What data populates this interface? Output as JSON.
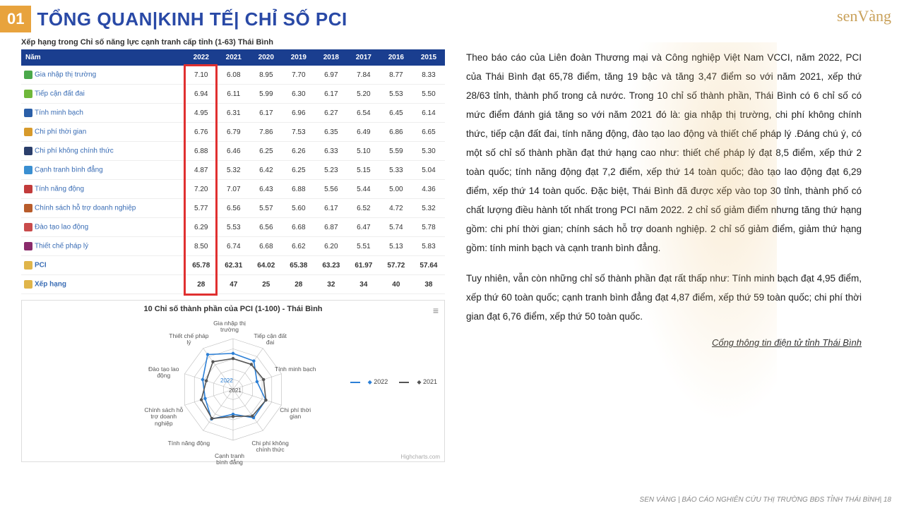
{
  "header": {
    "number": "01",
    "title": "TỔNG QUAN|KINH TẾ| CHỈ SỐ PCI",
    "logo": "senVàng"
  },
  "table": {
    "title": "Xếp hạng trong Chỉ số năng lực cạnh tranh cấp tỉnh (1-63) Thái Bình",
    "header_first": "Năm",
    "years": [
      "2022",
      "2021",
      "2020",
      "2019",
      "2018",
      "2017",
      "2016",
      "2015"
    ],
    "rows": [
      {
        "icon": "#4aa84a",
        "label": "Gia nhập thị trường",
        "vals": [
          "7.10",
          "6.08",
          "8.95",
          "7.70",
          "6.97",
          "7.84",
          "8.77",
          "8.33"
        ]
      },
      {
        "icon": "#6fb83a",
        "label": "Tiếp cận đất đai",
        "vals": [
          "6.94",
          "6.11",
          "5.99",
          "6.30",
          "6.17",
          "5.20",
          "5.53",
          "5.50"
        ]
      },
      {
        "icon": "#2b5fa8",
        "label": "Tính minh bạch",
        "vals": [
          "4.95",
          "6.31",
          "6.17",
          "6.96",
          "6.27",
          "6.54",
          "6.45",
          "6.14"
        ]
      },
      {
        "icon": "#d79a2b",
        "label": "Chi phí thời gian",
        "vals": [
          "6.76",
          "6.79",
          "7.86",
          "7.53",
          "6.35",
          "6.49",
          "6.86",
          "6.65"
        ]
      },
      {
        "icon": "#2b3f6b",
        "label": "Chi phí không chính thức",
        "vals": [
          "6.88",
          "6.46",
          "6.25",
          "6.26",
          "6.33",
          "5.10",
          "5.59",
          "5.30"
        ]
      },
      {
        "icon": "#3a8fd1",
        "label": "Cạnh tranh bình đẳng",
        "vals": [
          "4.87",
          "5.32",
          "6.42",
          "6.25",
          "5.23",
          "5.15",
          "5.33",
          "5.04"
        ]
      },
      {
        "icon": "#c23b3b",
        "label": "Tính năng động",
        "vals": [
          "7.20",
          "7.07",
          "6.43",
          "6.88",
          "5.56",
          "5.44",
          "5.00",
          "4.36"
        ]
      },
      {
        "icon": "#b85c2b",
        "label": "Chính sách hỗ trợ doanh nghiệp",
        "vals": [
          "5.77",
          "6.56",
          "5.57",
          "5.60",
          "6.17",
          "6.52",
          "4.72",
          "5.32"
        ]
      },
      {
        "icon": "#c94b4b",
        "label": "Đào tạo lao động",
        "vals": [
          "6.29",
          "5.53",
          "6.56",
          "6.68",
          "6.87",
          "6.47",
          "5.74",
          "5.78"
        ]
      },
      {
        "icon": "#8a2b6b",
        "label": "Thiết chế pháp lý",
        "vals": [
          "8.50",
          "6.74",
          "6.68",
          "6.62",
          "6.20",
          "5.51",
          "5.13",
          "5.83"
        ]
      },
      {
        "icon": "#e0b54a",
        "label": "PCI",
        "vals": [
          "65.78",
          "62.31",
          "64.02",
          "65.38",
          "63.23",
          "61.97",
          "57.72",
          "57.64"
        ],
        "bold": true
      },
      {
        "icon": "#e0b54a",
        "label": "Xếp hạng",
        "vals": [
          "28",
          "47",
          "25",
          "28",
          "32",
          "34",
          "40",
          "38"
        ],
        "bold": true
      }
    ],
    "highlight_col_index": 1,
    "header_bg": "#1a3e8f",
    "highlight_border": "#e03030"
  },
  "radar": {
    "title": "10 Chỉ số thành phần của PCI (1-100) - Thái Bình",
    "labels": [
      "Gia nhập thị trường",
      "Tiếp cận đất đai",
      "Tính minh bạch",
      "Chi phí thời gian",
      "Chi phí không chính thức",
      "Cạnh tranh bình đẳng",
      "Tính năng động",
      "Chính sách hỗ trợ doanh nghiệp",
      "Đào tạo lao động",
      "Thiết chế pháp lý"
    ],
    "series": [
      {
        "name": "2022",
        "color": "#2b7fd6",
        "values": [
          7.1,
          6.94,
          4.95,
          6.76,
          6.88,
          4.87,
          7.2,
          5.77,
          6.29,
          8.5
        ]
      },
      {
        "name": "2021",
        "color": "#555555",
        "values": [
          6.08,
          6.11,
          6.31,
          6.79,
          6.46,
          5.32,
          7.07,
          6.56,
          5.53,
          6.74
        ]
      }
    ],
    "max": 10,
    "rings": 5,
    "grid_color": "#bbbbbb",
    "credit": "Highcharts.com"
  },
  "paragraphs": [
    "Theo báo cáo của Liên đoàn Thương mại và Công nghiệp Việt Nam VCCI, năm 2022, PCI của Thái Bình đạt 65,78 điểm, tăng 19 bậc và tăng 3,47 điểm so với năm 2021, xếp thứ 28/63 tỉnh, thành phố trong cả nước. Trong 10 chỉ số thành phần, Thái Bình có 6 chỉ số có mức điểm đánh giá tăng so với năm 2021 đó là: gia nhập thị trường, chi phí không chính thức, tiếp cận đất đai, tính năng động, đào tạo lao động và thiết chế pháp lý .Đáng chú ý, có một số chỉ số thành phần đạt thứ hạng cao như: thiết chế pháp lý đạt 8,5 điểm, xếp thứ 2 toàn quốc; tính năng động đạt 7,2 điểm, xếp thứ 14 toàn quốc; đào tạo lao động đạt 6,29 điểm, xếp thứ 14 toàn quốc. Đặc biệt, Thái Bình đã được xếp vào top 30 tỉnh, thành phố có chất lượng điều hành tốt nhất trong PCI năm 2022. 2 chỉ số giảm điểm nhưng tăng thứ hạng gồm: chi phí thời gian; chính sách hỗ trợ doanh nghiệp. 2 chỉ số giảm điểm, giảm thứ hạng gồm: tính minh bạch và cạnh tranh bình đẳng.",
    "Tuy nhiên, vẫn còn những chỉ số thành phần đạt rất thấp như: Tính minh bạch đạt 4,95 điểm, xếp thứ 60 toàn quốc; cạnh tranh bình đẳng đạt 4,87 điểm, xếp thứ 59 toàn quốc; chi phí thời gian đạt 6,76 điểm, xếp thứ 50 toàn quốc."
  ],
  "source": "Cổng thông tin điện tử tỉnh Thái Bình",
  "footer": "SEN VÀNG | BÁO CÁO NGHIÊN CỨU THỊ TRƯỜNG BĐS TỈNH THÁI BÌNH| 18"
}
